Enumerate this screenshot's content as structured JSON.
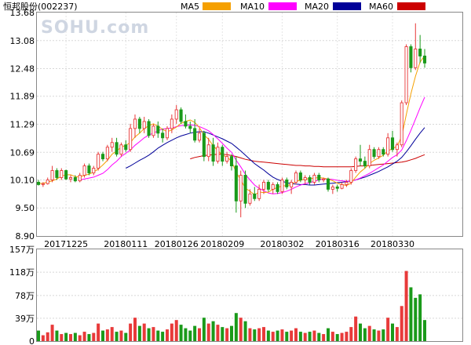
{
  "chart_data": [
    {
      "type": "candlestick",
      "title": "恒邦股份(002237)",
      "watermark": "SOHU.com",
      "y_ticks": [
        "13.68",
        "13.08",
        "12.48",
        "11.89",
        "11.29",
        "10.69",
        "10.10",
        "9.50",
        "8.90"
      ],
      "ylim": [
        8.9,
        13.68
      ],
      "x_ticks": [
        "20171225",
        "20180111",
        "20180126",
        "20180209",
        "20180302",
        "20180316",
        "20180330"
      ],
      "colors": {
        "up": "#e83a3a",
        "down": "#1a9a1a",
        "ma5": "#f5a000",
        "ma10": "#ff00ff",
        "ma20": "#000099",
        "ma60": "#cc0000"
      },
      "legend": [
        {
          "name": "MA5",
          "color": "#f5a000"
        },
        {
          "name": "MA10",
          "color": "#ff00ff"
        },
        {
          "name": "MA20",
          "color": "#000099"
        },
        {
          "name": "MA60",
          "color": "#cc0000"
        }
      ],
      "candles": [
        [
          10.05,
          10.1,
          9.98,
          10.0
        ],
        [
          10.0,
          10.05,
          9.95,
          10.02
        ],
        [
          10.02,
          10.15,
          10.0,
          10.1
        ],
        [
          10.1,
          10.4,
          10.05,
          10.3
        ],
        [
          10.3,
          10.35,
          10.1,
          10.15
        ],
        [
          10.15,
          10.35,
          10.1,
          10.3
        ],
        [
          10.3,
          10.32,
          10.1,
          10.12
        ],
        [
          10.12,
          10.2,
          10.05,
          10.15
        ],
        [
          10.15,
          10.2,
          10.05,
          10.08
        ],
        [
          10.08,
          10.25,
          10.05,
          10.2
        ],
        [
          10.2,
          10.45,
          10.15,
          10.4
        ],
        [
          10.4,
          10.45,
          10.2,
          10.25
        ],
        [
          10.25,
          10.4,
          10.2,
          10.35
        ],
        [
          10.35,
          10.7,
          10.3,
          10.65
        ],
        [
          10.65,
          10.7,
          10.5,
          10.55
        ],
        [
          10.55,
          10.85,
          10.5,
          10.8
        ],
        [
          10.8,
          11.0,
          10.7,
          10.9
        ],
        [
          10.9,
          11.0,
          10.6,
          10.65
        ],
        [
          10.65,
          10.9,
          10.6,
          10.85
        ],
        [
          10.85,
          10.95,
          10.7,
          10.75
        ],
        [
          10.75,
          11.3,
          10.7,
          11.2
        ],
        [
          11.2,
          11.5,
          11.0,
          11.4
        ],
        [
          11.4,
          11.45,
          11.1,
          11.2
        ],
        [
          11.2,
          11.45,
          11.1,
          11.35
        ],
        [
          11.35,
          11.4,
          11.0,
          11.05
        ],
        [
          11.05,
          11.3,
          11.0,
          11.25
        ],
        [
          11.25,
          11.35,
          11.0,
          11.1
        ],
        [
          11.1,
          11.2,
          10.9,
          11.0
        ],
        [
          11.0,
          11.25,
          10.95,
          11.2
        ],
        [
          11.2,
          11.5,
          11.1,
          11.4
        ],
        [
          11.4,
          11.7,
          11.3,
          11.6
        ],
        [
          11.6,
          11.65,
          11.3,
          11.35
        ],
        [
          11.35,
          11.5,
          11.2,
          11.25
        ],
        [
          11.25,
          11.35,
          11.1,
          11.2
        ],
        [
          11.2,
          11.4,
          10.9,
          10.95
        ],
        [
          10.95,
          11.2,
          10.9,
          11.1
        ],
        [
          11.1,
          11.15,
          10.5,
          10.6
        ],
        [
          10.6,
          11.0,
          10.5,
          10.85
        ],
        [
          10.85,
          11.0,
          10.4,
          10.5
        ],
        [
          10.5,
          10.9,
          10.45,
          10.8
        ],
        [
          10.8,
          10.85,
          10.4,
          10.5
        ],
        [
          10.5,
          10.7,
          10.45,
          10.6
        ],
        [
          10.6,
          10.65,
          10.3,
          10.4
        ],
        [
          10.4,
          10.6,
          9.4,
          9.65
        ],
        [
          9.65,
          10.3,
          9.3,
          10.2
        ],
        [
          10.2,
          10.3,
          9.5,
          9.6
        ],
        [
          9.6,
          9.9,
          9.55,
          9.8
        ],
        [
          9.8,
          9.95,
          9.65,
          9.7
        ],
        [
          9.7,
          10.0,
          9.65,
          9.9
        ],
        [
          9.9,
          10.1,
          9.8,
          10.05
        ],
        [
          10.05,
          10.1,
          9.85,
          9.9
        ],
        [
          9.9,
          10.05,
          9.8,
          10.0
        ],
        [
          10.0,
          10.05,
          9.8,
          9.85
        ],
        [
          9.85,
          10.15,
          9.8,
          10.1
        ],
        [
          10.1,
          10.15,
          9.9,
          9.95
        ],
        [
          9.95,
          10.1,
          9.8,
          10.05
        ],
        [
          10.05,
          10.3,
          10.0,
          10.25
        ],
        [
          10.25,
          10.3,
          10.05,
          10.1
        ],
        [
          10.1,
          10.2,
          10.0,
          10.15
        ],
        [
          10.15,
          10.2,
          10.0,
          10.05
        ],
        [
          10.05,
          10.25,
          10.0,
          10.2
        ],
        [
          10.2,
          10.25,
          10.05,
          10.1
        ],
        [
          10.1,
          10.15,
          10.05,
          10.12
        ],
        [
          10.12,
          10.15,
          9.85,
          9.9
        ],
        [
          9.9,
          10.0,
          9.8,
          9.95
        ],
        [
          9.95,
          10.0,
          9.85,
          9.92
        ],
        [
          9.92,
          10.05,
          9.9,
          10.0
        ],
        [
          10.0,
          10.1,
          9.95,
          10.05
        ],
        [
          10.05,
          10.35,
          10.0,
          10.3
        ],
        [
          10.3,
          10.6,
          10.25,
          10.55
        ],
        [
          10.55,
          10.85,
          10.4,
          10.5
        ],
        [
          10.5,
          10.6,
          10.35,
          10.4
        ],
        [
          10.4,
          10.85,
          10.35,
          10.75
        ],
        [
          10.75,
          10.8,
          10.55,
          10.6
        ],
        [
          10.6,
          10.8,
          10.55,
          10.75
        ],
        [
          10.75,
          10.8,
          10.6,
          10.65
        ],
        [
          10.65,
          11.1,
          10.6,
          11.0
        ],
        [
          11.0,
          11.15,
          10.7,
          10.75
        ],
        [
          10.75,
          10.9,
          10.6,
          10.85
        ],
        [
          10.85,
          11.8,
          10.8,
          11.75
        ],
        [
          11.75,
          13.0,
          11.7,
          12.95
        ],
        [
          12.95,
          13.0,
          12.4,
          12.5
        ],
        [
          12.5,
          13.45,
          12.45,
          12.9
        ],
        [
          12.9,
          13.2,
          12.6,
          12.75
        ],
        [
          12.75,
          12.9,
          12.5,
          12.6
        ]
      ],
      "ma5": [
        10.02,
        10.03,
        10.05,
        10.08,
        10.12,
        10.18,
        10.21,
        10.21,
        10.17,
        10.16,
        10.2,
        10.22,
        10.27,
        10.33,
        10.42,
        10.52,
        10.65,
        10.72,
        10.8,
        10.84,
        10.9,
        11.02,
        11.1,
        11.2,
        11.26,
        11.3,
        11.25,
        11.18,
        11.13,
        11.17,
        11.23,
        11.31,
        11.35,
        11.38,
        11.33,
        11.22,
        11.06,
        10.97,
        10.83,
        10.73,
        10.63,
        10.59,
        10.5,
        10.26,
        10.1,
        9.92,
        9.86,
        9.78,
        9.84,
        9.83,
        9.84,
        9.9,
        9.94,
        9.97,
        9.98,
        10.0,
        10.07,
        10.09,
        10.12,
        10.13,
        10.14,
        10.15,
        10.14,
        10.12,
        10.08,
        10.03,
        10.0,
        9.98,
        10.03,
        10.16,
        10.27,
        10.35,
        10.45,
        10.52,
        10.57,
        10.63,
        10.72,
        10.77,
        10.82,
        11.03,
        11.5,
        11.94,
        12.32,
        12.62,
        12.76
      ],
      "ma10": [
        null,
        null,
        null,
        null,
        null,
        null,
        null,
        null,
        null,
        10.1,
        10.12,
        10.14,
        10.16,
        10.2,
        10.24,
        10.32,
        10.42,
        10.5,
        10.6,
        10.67,
        10.74,
        10.84,
        10.92,
        11.0,
        11.06,
        11.1,
        11.15,
        11.19,
        11.2,
        11.21,
        11.24,
        11.26,
        11.27,
        11.28,
        11.27,
        11.24,
        11.2,
        11.15,
        11.07,
        10.98,
        10.88,
        10.78,
        10.69,
        10.52,
        10.38,
        10.22,
        10.1,
        9.99,
        9.92,
        9.87,
        9.82,
        9.8,
        9.81,
        9.83,
        9.86,
        9.9,
        9.95,
        9.99,
        10.02,
        10.04,
        10.07,
        10.1,
        10.12,
        10.12,
        10.11,
        10.09,
        10.08,
        10.07,
        10.08,
        10.1,
        10.14,
        10.19,
        10.24,
        10.3,
        10.36,
        10.42,
        10.5,
        10.58,
        10.64,
        10.74,
        10.94,
        11.16,
        11.4,
        11.64,
        11.87
      ],
      "ma20": [
        null,
        null,
        null,
        null,
        null,
        null,
        null,
        null,
        null,
        null,
        null,
        null,
        null,
        null,
        null,
        null,
        null,
        null,
        null,
        10.35,
        10.4,
        10.46,
        10.52,
        10.57,
        10.63,
        10.7,
        10.78,
        10.84,
        10.9,
        10.95,
        11.0,
        11.04,
        11.07,
        11.1,
        11.12,
        11.13,
        11.13,
        11.1,
        11.06,
        11.02,
        10.98,
        10.93,
        10.88,
        10.8,
        10.72,
        10.63,
        10.54,
        10.45,
        10.38,
        10.31,
        10.23,
        10.16,
        10.11,
        10.07,
        10.04,
        10.02,
        10.01,
        10.0,
        10.0,
        9.99,
        9.99,
        10.0,
        10.01,
        10.02,
        10.03,
        10.04,
        10.05,
        10.06,
        10.08,
        10.1,
        10.13,
        10.16,
        10.2,
        10.24,
        10.28,
        10.33,
        10.38,
        10.44,
        10.5,
        10.58,
        10.7,
        10.83,
        10.97,
        11.1,
        11.22
      ],
      "ma60": [
        null,
        null,
        null,
        null,
        null,
        null,
        null,
        null,
        null,
        null,
        null,
        null,
        null,
        null,
        null,
        null,
        null,
        null,
        null,
        null,
        null,
        null,
        null,
        null,
        null,
        null,
        null,
        null,
        null,
        null,
        null,
        null,
        null,
        10.55,
        10.58,
        10.6,
        10.62,
        10.63,
        10.64,
        10.65,
        10.65,
        10.64,
        10.62,
        10.6,
        10.57,
        10.54,
        10.52,
        10.5,
        10.49,
        10.48,
        10.47,
        10.46,
        10.45,
        10.44,
        10.43,
        10.42,
        10.41,
        10.41,
        10.4,
        10.4,
        10.39,
        10.39,
        10.38,
        10.38,
        10.38,
        10.38,
        10.38,
        10.38,
        10.38,
        10.39,
        10.4,
        10.4,
        10.41,
        10.42,
        10.43,
        10.44,
        10.45,
        10.46,
        10.47,
        10.48,
        10.5,
        10.53,
        10.56,
        10.6,
        10.64
      ]
    },
    {
      "type": "bar",
      "y_ticks": [
        "157万",
        "118万",
        "78万",
        "39万",
        "0"
      ],
      "ylim": [
        0,
        157
      ],
      "unit": "万",
      "volumes": [
        18,
        10,
        15,
        28,
        18,
        12,
        14,
        12,
        14,
        10,
        16,
        12,
        14,
        30,
        18,
        20,
        24,
        16,
        18,
        14,
        30,
        40,
        26,
        30,
        22,
        24,
        18,
        16,
        20,
        30,
        36,
        28,
        22,
        18,
        26,
        22,
        40,
        30,
        34,
        28,
        24,
        22,
        26,
        48,
        40,
        34,
        22,
        20,
        22,
        24,
        18,
        16,
        18,
        20,
        16,
        18,
        22,
        16,
        14,
        16,
        18,
        14,
        12,
        22,
        16,
        12,
        14,
        16,
        24,
        42,
        30,
        22,
        26,
        20,
        18,
        20,
        40,
        30,
        24,
        60,
        120,
        92,
        74,
        80,
        36
      ],
      "volume_up": [
        0,
        1,
        1,
        1,
        0,
        1,
        0,
        1,
        0,
        1,
        1,
        0,
        1,
        1,
        0,
        1,
        1,
        0,
        1,
        0,
        1,
        1,
        0,
        1,
        0,
        1,
        0,
        0,
        1,
        1,
        1,
        0,
        0,
        0,
        0,
        1,
        0,
        1,
        0,
        1,
        0,
        1,
        0,
        0,
        1,
        0,
        1,
        0,
        1,
        1,
        0,
        1,
        0,
        1,
        0,
        1,
        1,
        0,
        1,
        0,
        1,
        0,
        1,
        0,
        1,
        0,
        1,
        1,
        1,
        1,
        0,
        0,
        1,
        0,
        1,
        0,
        1,
        0,
        1,
        1,
        1,
        0,
        0,
        0,
        0
      ]
    }
  ]
}
